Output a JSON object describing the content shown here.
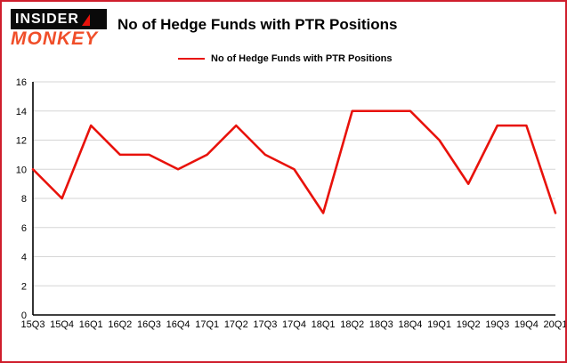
{
  "logo": {
    "line1": "INSIDER",
    "line2": "MONKEY"
  },
  "header": {
    "title": "No of Hedge Funds with PTR Positions"
  },
  "legend": {
    "label": "No of Hedge Funds with PTR Positions"
  },
  "colors": {
    "accent_red": "#e8120b",
    "border_red": "#cf1e2c",
    "grid_gray": "#d6d6d6",
    "axis_black": "#000000",
    "logo_black": "#0a0a0a",
    "logo_red": "#f04e29"
  },
  "chart_data": {
    "type": "line",
    "title": "No of Hedge Funds with PTR Positions",
    "legend_entries": [
      "No of Hedge Funds with PTR Positions"
    ],
    "legend_position": "top-center",
    "categories": [
      "15Q3",
      "15Q4",
      "16Q1",
      "16Q2",
      "16Q3",
      "16Q4",
      "17Q1",
      "17Q2",
      "17Q3",
      "17Q4",
      "18Q1",
      "18Q2",
      "18Q3",
      "18Q4",
      "19Q1",
      "19Q2",
      "19Q3",
      "19Q4",
      "20Q1"
    ],
    "series": [
      {
        "name": "No of Hedge Funds with PTR Positions",
        "color": "#e8120b",
        "values": [
          10,
          8,
          13,
          11,
          11,
          10,
          11,
          13,
          11,
          10,
          7,
          14,
          14,
          14,
          12,
          9,
          13,
          13,
          7
        ]
      }
    ],
    "xlabel": "",
    "ylabel": "",
    "ylim": [
      0,
      16
    ],
    "ytick_step": 2,
    "yticks": [
      0,
      2,
      4,
      6,
      8,
      10,
      12,
      14,
      16
    ],
    "grid": "horizontal"
  }
}
